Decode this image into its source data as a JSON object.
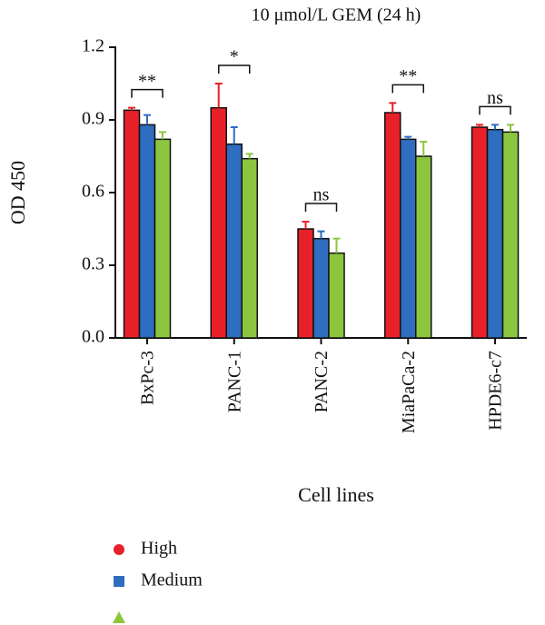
{
  "chart_data": {
    "type": "bar",
    "title": "10 μmol/L GEM (24 h)",
    "x_label": "Cell lines",
    "y_label": "OD 450",
    "categories": [
      "BxPc-3",
      "PANC-1",
      "PANC-2",
      "MiaPaCa-2",
      "HPDE6-c7"
    ],
    "series": [
      {
        "name": "High",
        "color": "#e8202a",
        "marker": "circle",
        "values": [
          0.94,
          0.95,
          0.45,
          0.93,
          0.87
        ],
        "errors": [
          0.01,
          0.1,
          0.03,
          0.04,
          0.01
        ]
      },
      {
        "name": "Medium",
        "color": "#2e6dbf",
        "marker": "square",
        "values": [
          0.88,
          0.8,
          0.41,
          0.82,
          0.86
        ],
        "errors": [
          0.04,
          0.07,
          0.03,
          0.01,
          0.02
        ]
      },
      {
        "color": "#8cc63f",
        "marker": "triangle",
        "values": [
          0.82,
          0.74,
          0.35,
          0.75,
          0.85
        ],
        "errors": [
          0.03,
          0.02,
          0.06,
          0.06,
          0.03
        ]
      }
    ],
    "significance": [
      "**",
      "*",
      "ns",
      "**",
      "ns"
    ],
    "ylim": [
      0,
      1.2
    ],
    "yticks": [
      {
        "value": 0,
        "label": "0.0"
      },
      0.3,
      0.6,
      0.9,
      1.2
    ]
  }
}
